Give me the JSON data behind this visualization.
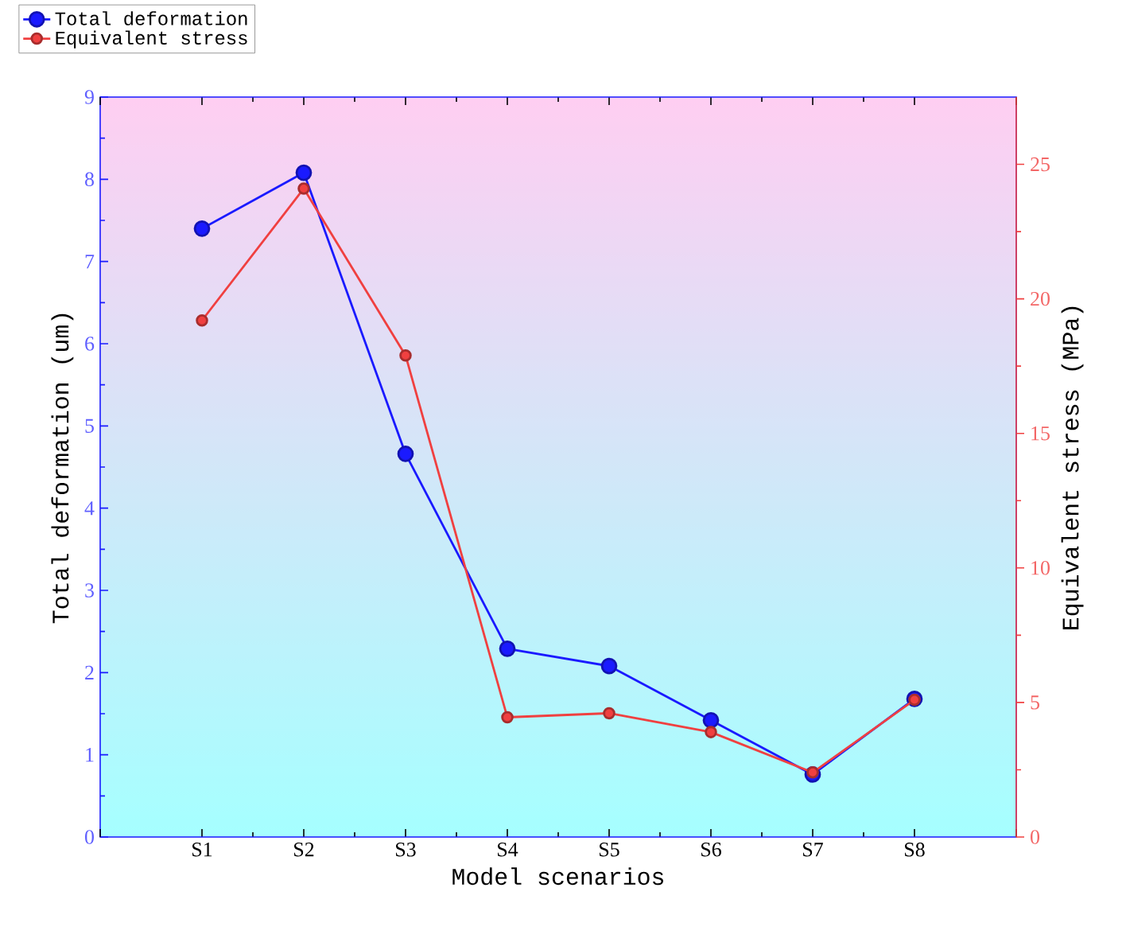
{
  "chart_data": {
    "type": "line",
    "xlabel": "Model scenarios",
    "ylabel": "Total deformation (um)",
    "y2label": "Equivalent stress (MPa)",
    "categories": [
      "S1",
      "S2",
      "S3",
      "S4",
      "S5",
      "S6",
      "S7",
      "S8"
    ],
    "series": [
      {
        "name": "Total deformation",
        "color": "#1a1aff",
        "values": [
          7.4,
          8.08,
          4.66,
          2.29,
          2.08,
          1.42,
          0.76,
          1.68
        ]
      },
      {
        "name": "Equivalent stress",
        "color": "#f04040",
        "axis": "y2",
        "values": [
          19.2,
          24.1,
          17.9,
          4.45,
          4.6,
          3.9,
          2.4,
          5.1
        ]
      }
    ],
    "ylim": [
      0,
      9
    ],
    "yticks": [
      0,
      1,
      2,
      3,
      4,
      5,
      6,
      7,
      8,
      9
    ],
    "y2lim": [
      0,
      27.5
    ],
    "y2ticks": [
      0,
      5,
      10,
      15,
      20,
      25
    ],
    "legend": "top left",
    "marker": "circle",
    "line_style": "solid",
    "grid": false
  }
}
